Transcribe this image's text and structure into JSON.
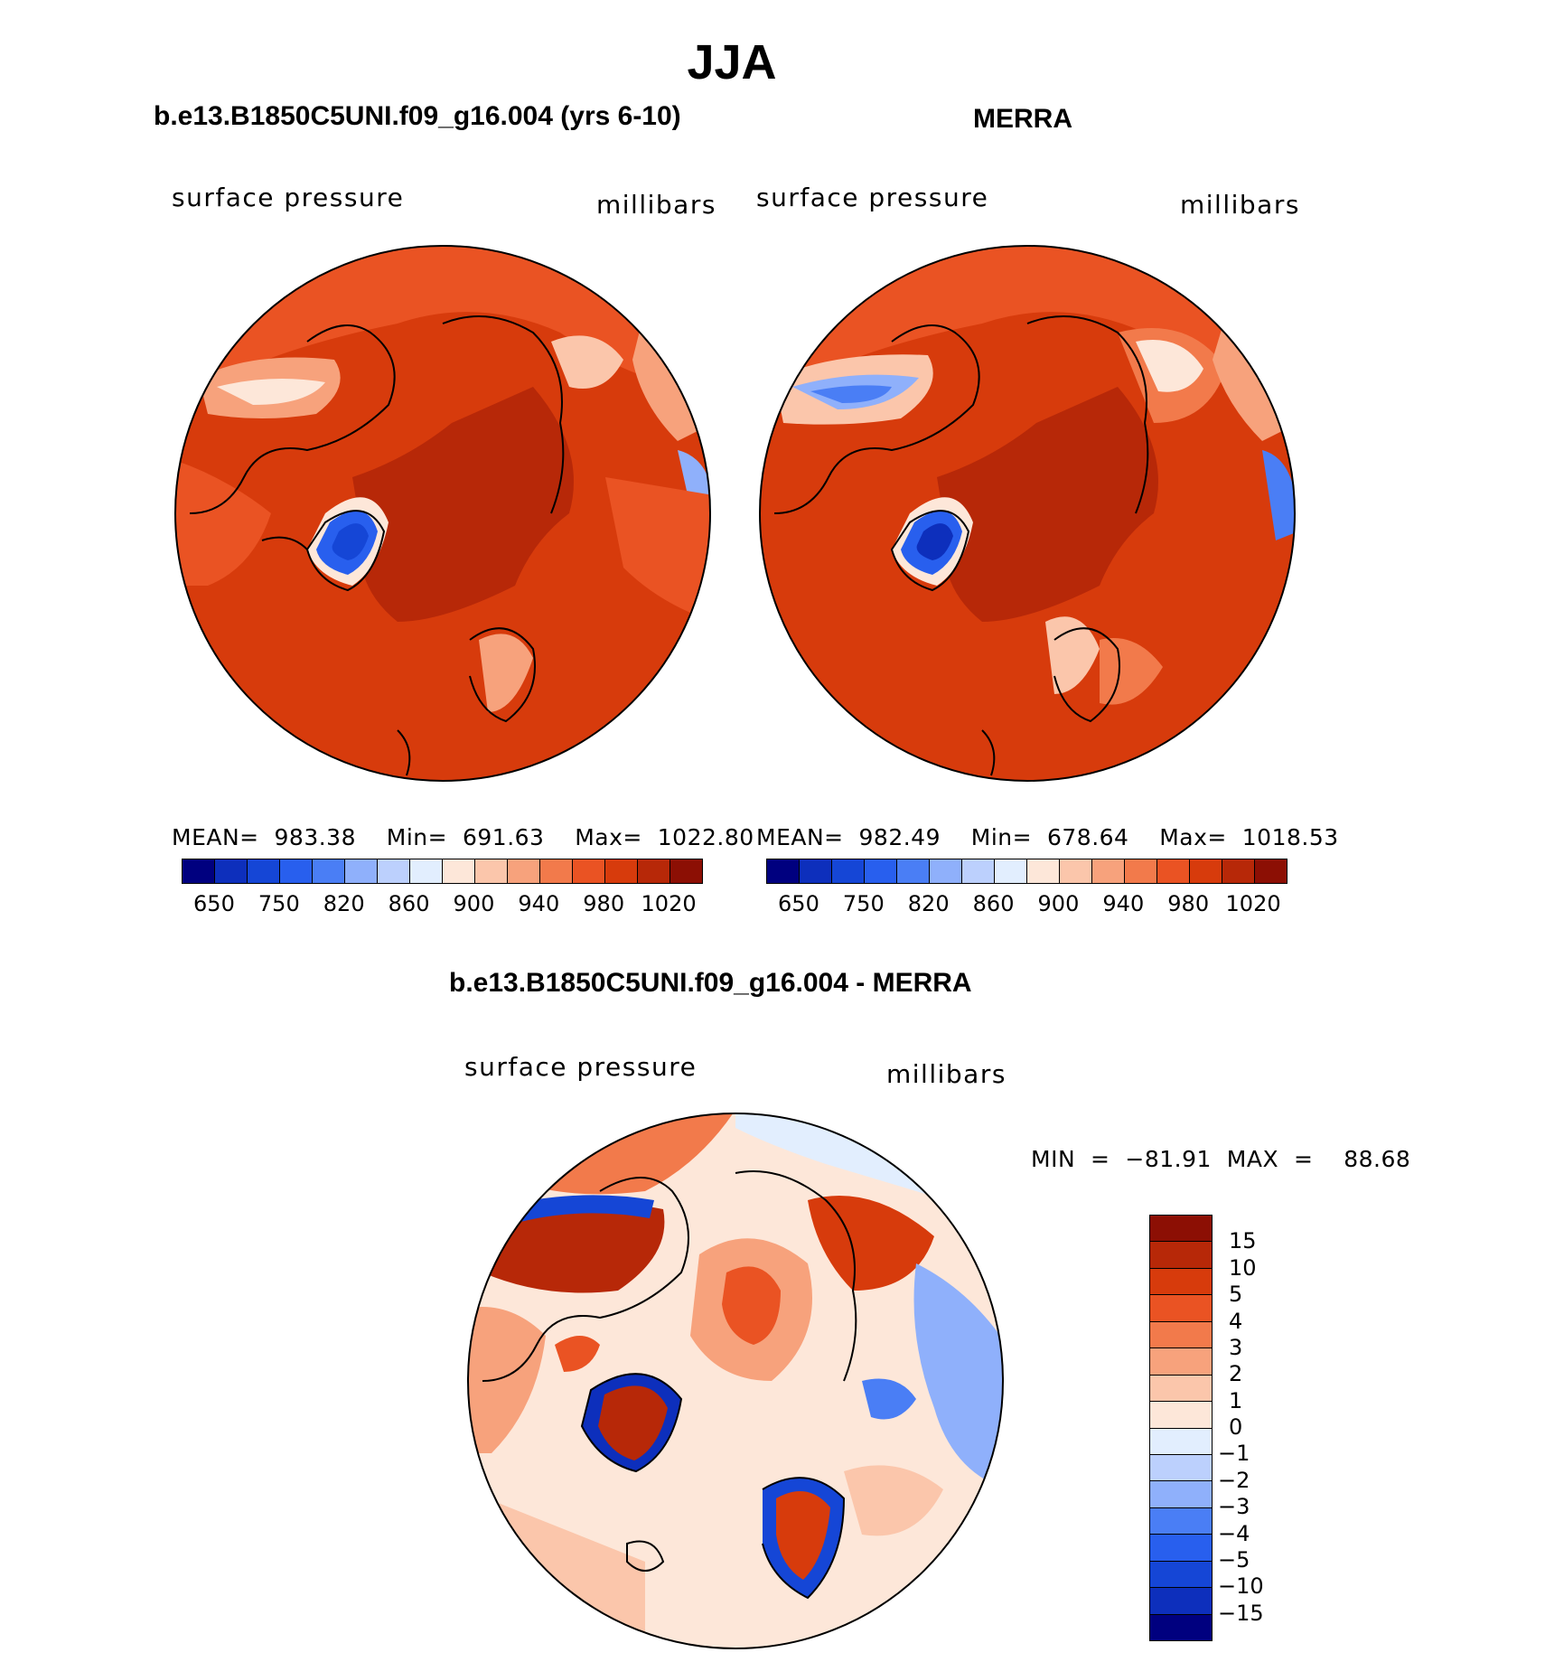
{
  "figure": {
    "title": "JJA"
  },
  "panels": [
    {
      "title": "b.e13.B1850C5UNI.f09_g16.004 (yrs 6-10)",
      "left_label": "surface pressure",
      "right_label": "millibars",
      "stats": "MEAN=  983.38    Min=  691.63    Max=  1022.80"
    },
    {
      "title": "MERRA",
      "left_label": "surface pressure",
      "right_label": "millibars",
      "stats": "MEAN=  982.49    Min=  678.64    Max=  1018.53"
    }
  ],
  "abs_colorbar": {
    "colors": [
      "#00007f",
      "#0d2fbc",
      "#1546d6",
      "#285fee",
      "#4a7ef5",
      "#8fb0fb",
      "#bcd0fd",
      "#e2eefe",
      "#fde7d9",
      "#fbc6ab",
      "#f7a27c",
      "#f27a4b",
      "#ea5323",
      "#d73b0c",
      "#b72808",
      "#8c0f04"
    ],
    "tick_labels": [
      "650",
      "750",
      "820",
      "860",
      "900",
      "940",
      "980",
      "1020"
    ]
  },
  "difference": {
    "title": "b.e13.B1850C5UNI.f09_g16.004 - MERRA",
    "left_label": "surface pressure",
    "right_label": "millibars",
    "minmax": "MIN  =  −81.91  MAX  =    88.68"
  },
  "diff_colorbar": {
    "colors_top_to_bottom": [
      "#8c0f04",
      "#b72808",
      "#d73b0c",
      "#ea5323",
      "#f27a4b",
      "#f7a27c",
      "#fbc6ab",
      "#fde7d9",
      "#e2eefe",
      "#bcd0fd",
      "#8fb0fb",
      "#4a7ef5",
      "#285fee",
      "#1546d6",
      "#0d2fbc",
      "#00007f"
    ],
    "tick_labels": [
      "15",
      "10",
      "5",
      "4",
      "3",
      "2",
      "1",
      "0",
      "−1",
      "−2",
      "−3",
      "−4",
      "−5",
      "−10",
      "−15"
    ]
  }
}
